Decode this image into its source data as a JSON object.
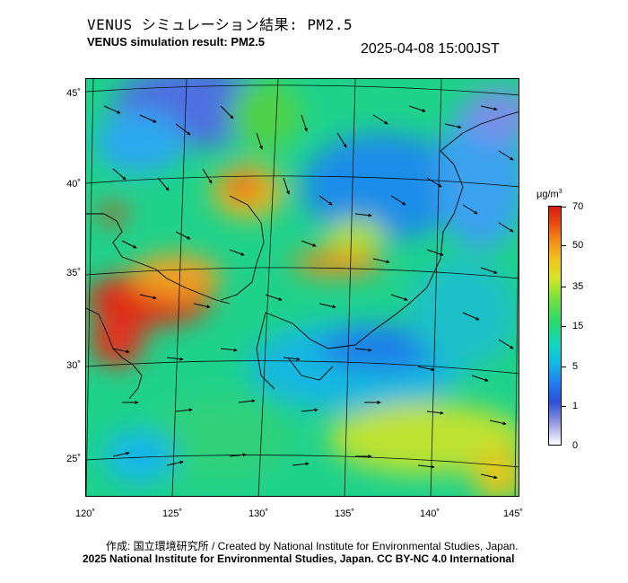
{
  "title_jp": "VENUS シミュレーション結果: PM2.5",
  "title_en": "VENUS simulation result: PM2.5",
  "timestamp": "2025-04-08 15:00JST",
  "lat_labels": [
    "45˚",
    "40˚",
    "35˚",
    "30˚",
    "25˚"
  ],
  "lon_labels": [
    "120˚",
    "125˚",
    "130˚",
    "135˚",
    "140˚",
    "145˚"
  ],
  "colorbar": {
    "unit": "μg/m",
    "unit_sup": "3",
    "ticks": [
      "70",
      "50",
      "35",
      "15",
      "5",
      "1",
      "0"
    ]
  },
  "credit_line1": "作成: 国立環境研究所 / Created by National Institute for Environmental Studies, Japan.",
  "credit_line2": "2025 National Institute for Environmental Studies, Japan. CC BY-NC 4.0 International",
  "colors": {
    "high": "#d81c10",
    "mid": "#2bdc6a",
    "low": "#1f7ff0",
    "land_outline": "#000000"
  }
}
